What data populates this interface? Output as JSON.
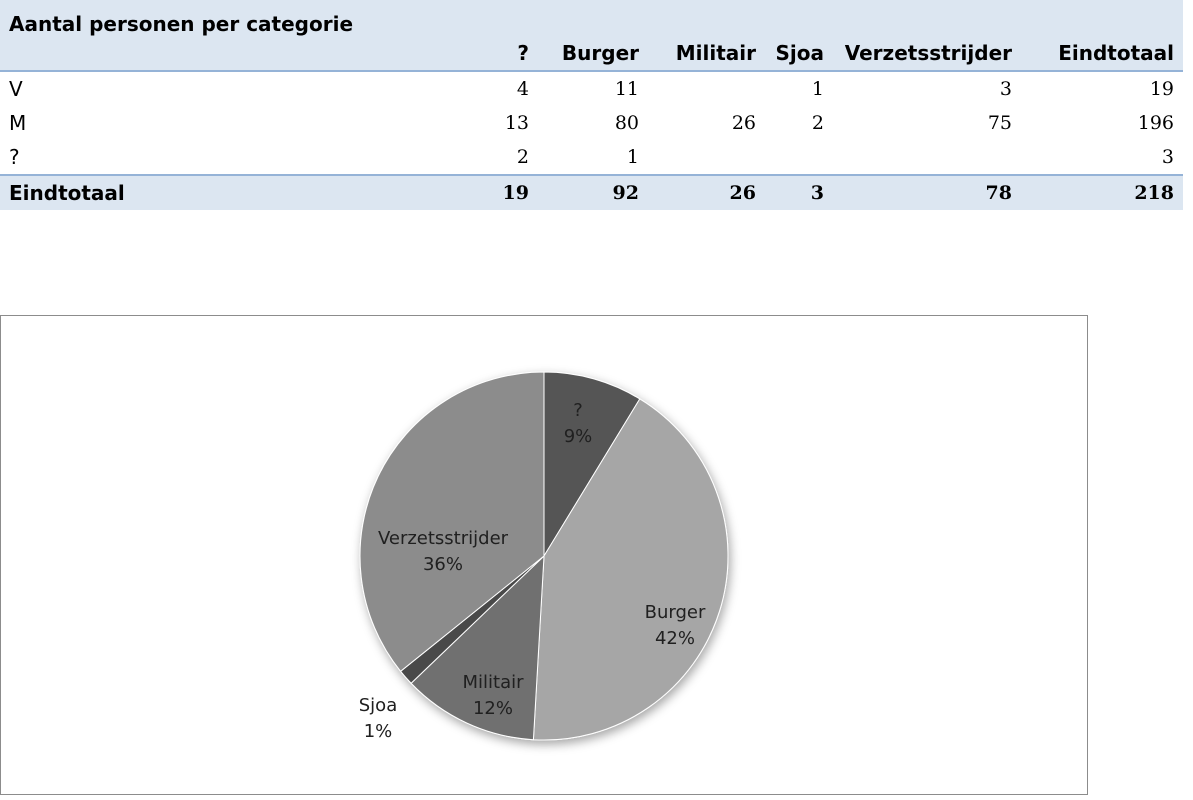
{
  "table": {
    "title": "Aantal personen per categorie",
    "columns": [
      "?",
      "Burger",
      "Militair",
      "Sjoa",
      "Verzetsstrijder",
      "Eindtotaal"
    ],
    "rows": [
      {
        "label": "V",
        "cells": [
          "4",
          "11",
          "",
          "1",
          "3",
          "19"
        ]
      },
      {
        "label": "M",
        "cells": [
          "13",
          "80",
          "26",
          "2",
          "75",
          "196"
        ]
      },
      {
        "label": "?",
        "cells": [
          "2",
          "1",
          "",
          "",
          "",
          "3"
        ]
      }
    ],
    "total": {
      "label": "Eindtotaal",
      "cells": [
        "19",
        "92",
        "26",
        "3",
        "78",
        "218"
      ]
    }
  },
  "chart_data": {
    "type": "pie",
    "title": "",
    "start_angle_deg": 0,
    "direction": "clockwise",
    "slices": [
      {
        "name": "?",
        "value": 19,
        "pct_label": "9%",
        "color": "#555555"
      },
      {
        "name": "Burger",
        "value": 92,
        "pct_label": "42%",
        "color": "#a6a6a6"
      },
      {
        "name": "Militair",
        "value": 26,
        "pct_label": "12%",
        "color": "#6f6f6f"
      },
      {
        "name": "Sjoa",
        "value": 3,
        "pct_label": "1%",
        "color": "#4a4a4a"
      },
      {
        "name": "Verzetsstrijder",
        "value": 78,
        "pct_label": "36%",
        "color": "#8c8c8c"
      }
    ]
  }
}
